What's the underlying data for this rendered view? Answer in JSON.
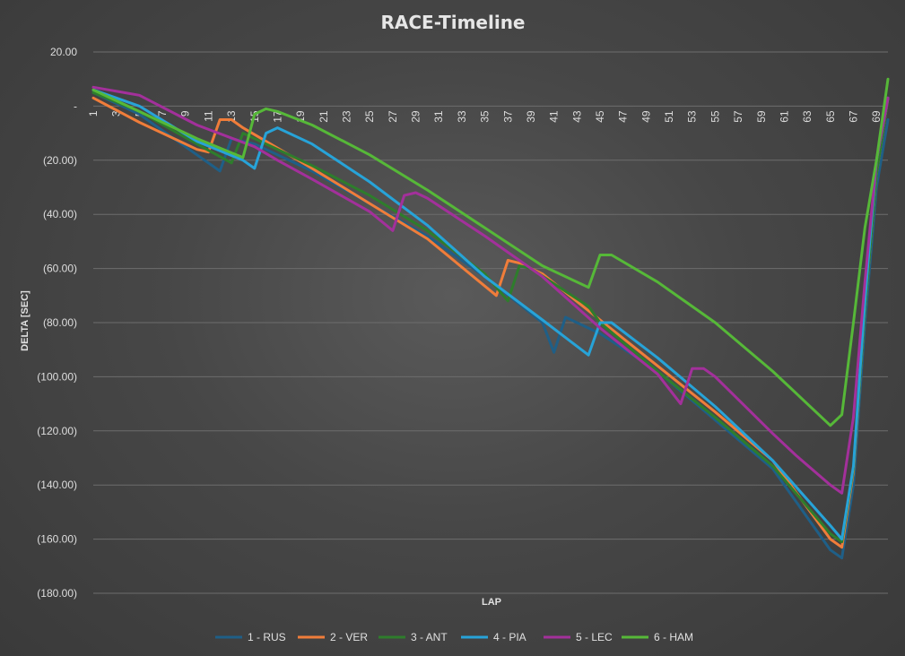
{
  "chart_data": {
    "type": "line",
    "title": "RACE-Timeline",
    "xlabel": "LAP",
    "ylabel": "DELTA [SEC]",
    "xlim": [
      1,
      70
    ],
    "ylim": [
      -180,
      20
    ],
    "y_ticks": [
      20,
      0,
      -20,
      -40,
      -60,
      -80,
      -100,
      -120,
      -140,
      -160,
      -180
    ],
    "y_tick_labels": [
      "20.00",
      "-",
      "(20.00)",
      "(40.00)",
      "(60.00)",
      "(80.00)",
      "(100.00)",
      "(120.00)",
      "(140.00)",
      "(160.00)",
      "(180.00)"
    ],
    "x_ticks": [
      1,
      3,
      5,
      7,
      9,
      11,
      13,
      15,
      17,
      19,
      21,
      23,
      25,
      27,
      29,
      31,
      33,
      35,
      37,
      39,
      41,
      43,
      45,
      47,
      49,
      51,
      53,
      55,
      57,
      59,
      61,
      63,
      65,
      67,
      69
    ],
    "grid": "horizontal",
    "legend_position": "bottom",
    "series": [
      {
        "name": "1 - RUS",
        "color": "#1f5f87",
        "points": [
          [
            1,
            5
          ],
          [
            5,
            -3
          ],
          [
            10,
            -18
          ],
          [
            12,
            -24
          ],
          [
            13,
            -12
          ],
          [
            15,
            -14
          ],
          [
            20,
            -24
          ],
          [
            30,
            -48
          ],
          [
            35,
            -63
          ],
          [
            40,
            -80
          ],
          [
            41,
            -91
          ],
          [
            42,
            -78
          ],
          [
            45,
            -84
          ],
          [
            50,
            -98
          ],
          [
            55,
            -116
          ],
          [
            60,
            -134
          ],
          [
            65,
            -164
          ],
          [
            66,
            -167
          ],
          [
            67,
            -140
          ],
          [
            68,
            -80
          ],
          [
            69,
            -30
          ],
          [
            70,
            -5
          ]
        ]
      },
      {
        "name": "2 - VER",
        "color": "#f07d3a",
        "points": [
          [
            1,
            3
          ],
          [
            5,
            -6
          ],
          [
            10,
            -16
          ],
          [
            11,
            -17
          ],
          [
            12,
            -5
          ],
          [
            13,
            -5
          ],
          [
            14,
            -8
          ],
          [
            20,
            -23
          ],
          [
            25,
            -36
          ],
          [
            30,
            -49
          ],
          [
            36,
            -70
          ],
          [
            37,
            -57
          ],
          [
            38,
            -58
          ],
          [
            40,
            -62
          ],
          [
            45,
            -79
          ],
          [
            50,
            -96
          ],
          [
            55,
            -113
          ],
          [
            60,
            -131
          ],
          [
            65,
            -160
          ],
          [
            66,
            -163
          ],
          [
            67,
            -135
          ],
          [
            68,
            -75
          ],
          [
            69,
            -25
          ],
          [
            70,
            3
          ]
        ]
      },
      {
        "name": "3 - ANT",
        "color": "#2e7d2c",
        "points": [
          [
            1,
            5
          ],
          [
            5,
            -2
          ],
          [
            10,
            -14
          ],
          [
            13,
            -21
          ],
          [
            14,
            -10
          ],
          [
            15,
            -12
          ],
          [
            20,
            -22
          ],
          [
            25,
            -33
          ],
          [
            30,
            -46
          ],
          [
            35,
            -62
          ],
          [
            37,
            -72
          ],
          [
            38,
            -59
          ],
          [
            39,
            -60
          ],
          [
            44,
            -74
          ],
          [
            45,
            -80
          ],
          [
            50,
            -98
          ],
          [
            55,
            -115
          ],
          [
            60,
            -133
          ],
          [
            65,
            -158
          ],
          [
            66,
            -161
          ],
          [
            67,
            -134
          ],
          [
            68,
            -75
          ],
          [
            69,
            -25
          ],
          [
            70,
            3
          ]
        ]
      },
      {
        "name": "4 - PIA",
        "color": "#27a3d8",
        "points": [
          [
            1,
            6
          ],
          [
            5,
            0
          ],
          [
            10,
            -13
          ],
          [
            14,
            -20
          ],
          [
            15,
            -23
          ],
          [
            16,
            -10
          ],
          [
            17,
            -8
          ],
          [
            20,
            -14
          ],
          [
            25,
            -28
          ],
          [
            30,
            -44
          ],
          [
            35,
            -63
          ],
          [
            40,
            -79
          ],
          [
            44,
            -92
          ],
          [
            45,
            -80
          ],
          [
            46,
            -80
          ],
          [
            50,
            -93
          ],
          [
            55,
            -111
          ],
          [
            60,
            -131
          ],
          [
            65,
            -155
          ],
          [
            66,
            -160
          ],
          [
            67,
            -133
          ],
          [
            68,
            -72
          ],
          [
            69,
            -20
          ],
          [
            70,
            3
          ]
        ]
      },
      {
        "name": "5 - LEC",
        "color": "#a3309b",
        "points": [
          [
            1,
            7
          ],
          [
            5,
            4
          ],
          [
            10,
            -7
          ],
          [
            15,
            -15
          ],
          [
            17,
            -20
          ],
          [
            20,
            -27
          ],
          [
            25,
            -39
          ],
          [
            27,
            -46
          ],
          [
            28,
            -33
          ],
          [
            29,
            -32
          ],
          [
            30,
            -34
          ],
          [
            35,
            -48
          ],
          [
            40,
            -63
          ],
          [
            45,
            -82
          ],
          [
            50,
            -99
          ],
          [
            52,
            -110
          ],
          [
            53,
            -97
          ],
          [
            54,
            -97
          ],
          [
            55,
            -100
          ],
          [
            60,
            -121
          ],
          [
            62,
            -129
          ],
          [
            65,
            -140
          ],
          [
            66,
            -143
          ],
          [
            67,
            -115
          ],
          [
            68,
            -65
          ],
          [
            69,
            -20
          ],
          [
            70,
            3
          ]
        ]
      },
      {
        "name": "6 - HAM",
        "color": "#56b838",
        "points": [
          [
            1,
            6
          ],
          [
            5,
            -2
          ],
          [
            10,
            -12
          ],
          [
            14,
            -19
          ],
          [
            15,
            -3
          ],
          [
            16,
            -1
          ],
          [
            17,
            -2
          ],
          [
            20,
            -7
          ],
          [
            25,
            -18
          ],
          [
            30,
            -31
          ],
          [
            35,
            -45
          ],
          [
            40,
            -59
          ],
          [
            44,
            -67
          ],
          [
            45,
            -55
          ],
          [
            46,
            -55
          ],
          [
            50,
            -65
          ],
          [
            55,
            -80
          ],
          [
            60,
            -98
          ],
          [
            65,
            -118
          ],
          [
            66,
            -114
          ],
          [
            67,
            -80
          ],
          [
            68,
            -45
          ],
          [
            69,
            -20
          ],
          [
            70,
            10
          ]
        ]
      }
    ]
  }
}
